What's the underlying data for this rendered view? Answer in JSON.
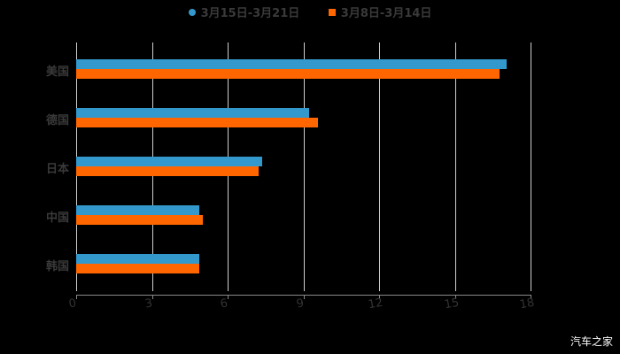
{
  "legend": {
    "series_1": "3月15日-3月21日",
    "series_2": "3月8日-3月14日"
  },
  "colors": {
    "series_1": "#3399cc",
    "series_2": "#ff6600",
    "background": "#000000"
  },
  "x_ticks": [
    "0",
    "3",
    "6",
    "9",
    "12",
    "15",
    "18"
  ],
  "categories": [
    "美国",
    "德国",
    "日本",
    "中国",
    "韩国"
  ],
  "watermark": "汽车之家",
  "chart_data": {
    "type": "bar",
    "orientation": "horizontal",
    "title": "",
    "categories": [
      "美国",
      "德国",
      "日本",
      "中国",
      "韩国"
    ],
    "series": [
      {
        "name": "3月15日-3月21日",
        "color": "#3399cc",
        "values": [
          17.05,
          9.23,
          7.37,
          4.88,
          4.88
        ]
      },
      {
        "name": "3月8日-3月14日",
        "color": "#ff6600",
        "values": [
          16.77,
          9.58,
          7.23,
          5.02,
          4.88
        ]
      }
    ],
    "xlabel": "",
    "ylabel": "",
    "xlim": [
      0,
      18
    ],
    "x_ticks": [
      0,
      3,
      6,
      9,
      12,
      15,
      18
    ],
    "grid": true,
    "legend_position": "top"
  }
}
